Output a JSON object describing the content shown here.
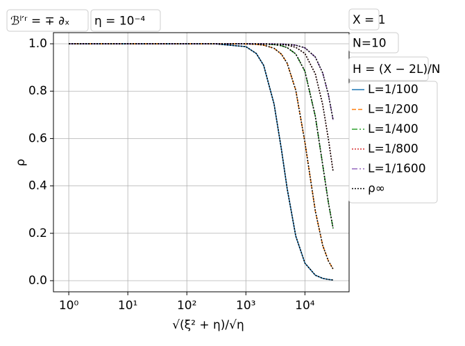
{
  "chart_data": {
    "type": "line",
    "annotations": [
      "ℬˡ′ʳ = ∓ ∂ₓ",
      "η = 10⁻⁴",
      "X = 1",
      "N=10",
      "H = (X − 2L)/N"
    ],
    "x_label": "√(ξ² + η)/√η",
    "y_label": "ρ",
    "log_x": true,
    "grid": true,
    "legend": "right",
    "x": [
      1,
      10,
      100,
      300,
      1000,
      1500,
      2000,
      3000,
      4000,
      5000,
      7000,
      10000,
      15000,
      20000,
      25000,
      30000
    ],
    "series": [
      {
        "name": "L=1/100",
        "color": "#1f77b4",
        "dash": "solid",
        "values": [
          1,
          1,
          1,
          0.9997,
          0.988,
          0.959,
          0.909,
          0.746,
          0.554,
          0.389,
          0.188,
          0.074,
          0.023,
          0.0098,
          0.0051,
          0.0029
        ]
      },
      {
        "name": "L=1/200",
        "color": "#ff7f0e",
        "dash": "dashed",
        "values": [
          1,
          1,
          1,
          1,
          0.9993,
          0.9976,
          0.9943,
          0.981,
          0.956,
          0.918,
          0.804,
          0.584,
          0.294,
          0.149,
          0.083,
          0.049
        ]
      },
      {
        "name": "L=1/400",
        "color": "#2ca02c",
        "dash": "dashdot",
        "values": [
          1,
          1,
          1,
          1,
          0.9999,
          0.9996,
          0.999,
          0.9965,
          0.992,
          0.984,
          0.957,
          0.884,
          0.694,
          0.489,
          0.329,
          0.221
        ]
      },
      {
        "name": "L=1/800",
        "color": "#d62728",
        "dash": "dotted",
        "values": [
          1,
          1,
          1,
          1,
          1,
          1,
          0.9997,
          0.9988,
          0.9972,
          0.9946,
          0.985,
          0.959,
          0.873,
          0.743,
          0.597,
          0.462
        ]
      },
      {
        "name": "L=1/1600",
        "color": "#9467bd",
        "dash": "dashdot",
        "values": [
          1,
          1,
          1,
          1,
          1,
          1,
          0.9999,
          0.9995,
          0.9989,
          0.9978,
          0.994,
          0.983,
          0.944,
          0.877,
          0.785,
          0.679
        ]
      }
    ],
    "overlay": {
      "name": "ρ∞",
      "color": "#000000",
      "dash": "dotted"
    },
    "xlim": [
      0.55,
      56000
    ],
    "ylim": [
      -0.047,
      1.047
    ],
    "xticks": [
      {
        "value": 1,
        "label": "10⁰"
      },
      {
        "value": 10,
        "label": "10¹"
      },
      {
        "value": 100,
        "label": "10²"
      },
      {
        "value": 1000,
        "label": "10³"
      },
      {
        "value": 10000,
        "label": "10⁴"
      }
    ],
    "yticks": [
      {
        "value": 0,
        "label": "0.0"
      },
      {
        "value": 0.2,
        "label": "0.2"
      },
      {
        "value": 0.4,
        "label": "0.4"
      },
      {
        "value": 0.6,
        "label": "0.6"
      },
      {
        "value": 0.8,
        "label": "0.8"
      },
      {
        "value": 1,
        "label": "1.0"
      }
    ]
  }
}
